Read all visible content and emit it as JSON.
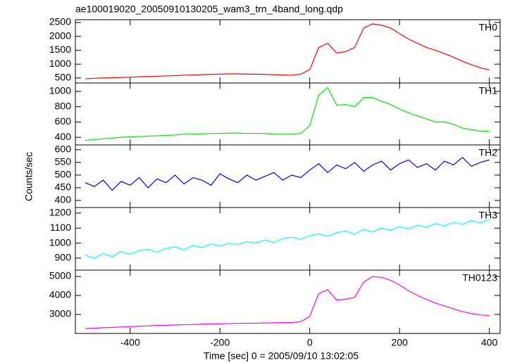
{
  "title": "ae100019020_20050910130205_wam3_trn_4band_long.qdp",
  "y_label": "Counts/sec",
  "x_label": "Time [sec] 0 = 2005/09/10 13:02:05",
  "chart_data": [
    {
      "type": "line",
      "xlim": [
        -522,
        424
      ],
      "xticks": [
        -400,
        -200,
        0,
        200,
        400
      ],
      "ylim": [
        320,
        2600
      ],
      "yticks": [
        500,
        1000,
        1500,
        2000,
        2500
      ],
      "x": [
        -500,
        -480,
        -460,
        -440,
        -420,
        -400,
        -380,
        -360,
        -340,
        -320,
        -300,
        -280,
        -260,
        -240,
        -220,
        -200,
        -180,
        -160,
        -140,
        -120,
        -100,
        -80,
        -60,
        -40,
        -20,
        0,
        20,
        40,
        60,
        80,
        100,
        120,
        140,
        160,
        180,
        200,
        220,
        240,
        260,
        280,
        300,
        320,
        340,
        360,
        380,
        400
      ],
      "series": [
        {
          "name": "TH0",
          "color": "#ff0000",
          "values": [
            470,
            490,
            500,
            510,
            520,
            530,
            545,
            555,
            565,
            575,
            585,
            600,
            610,
            620,
            630,
            640,
            650,
            650,
            640,
            640,
            630,
            620,
            610,
            600,
            640,
            800,
            1600,
            1750,
            1400,
            1450,
            1600,
            2300,
            2450,
            2400,
            2300,
            2100,
            1900,
            1750,
            1600,
            1500,
            1380,
            1250,
            1100,
            980,
            870,
            790
          ]
        }
      ]
    },
    {
      "type": "line",
      "xlim": [
        -522,
        424
      ],
      "xticks": [
        -400,
        -200,
        0,
        200,
        400
      ],
      "ylim": [
        300,
        1110
      ],
      "yticks": [
        400,
        600,
        800,
        1000
      ],
      "x": [
        -500,
        -480,
        -460,
        -440,
        -420,
        -400,
        -380,
        -360,
        -340,
        -320,
        -300,
        -280,
        -260,
        -240,
        -220,
        -200,
        -180,
        -160,
        -140,
        -120,
        -100,
        -80,
        -60,
        -40,
        -20,
        0,
        20,
        40,
        60,
        80,
        100,
        120,
        140,
        160,
        180,
        200,
        220,
        240,
        260,
        280,
        300,
        320,
        340,
        360,
        380,
        400
      ],
      "series": [
        {
          "name": "TH1",
          "color": "#00e600",
          "values": [
            360,
            370,
            380,
            390,
            400,
            405,
            410,
            415,
            420,
            425,
            430,
            440,
            440,
            445,
            450,
            450,
            455,
            455,
            450,
            450,
            450,
            440,
            440,
            440,
            450,
            550,
            950,
            1050,
            820,
            830,
            800,
            920,
            920,
            870,
            830,
            770,
            720,
            680,
            640,
            600,
            600,
            570,
            520,
            500,
            480,
            480
          ]
        }
      ]
    },
    {
      "type": "line",
      "xlim": [
        -522,
        424
      ],
      "xticks": [
        -400,
        -200,
        0,
        200,
        400
      ],
      "ylim": [
        372,
        619
      ],
      "yticks": [
        400,
        450,
        500,
        550,
        600
      ],
      "x": [
        -500,
        -480,
        -460,
        -440,
        -420,
        -400,
        -380,
        -360,
        -340,
        -320,
        -300,
        -280,
        -260,
        -240,
        -220,
        -200,
        -180,
        -160,
        -140,
        -120,
        -100,
        -80,
        -60,
        -40,
        -20,
        0,
        20,
        40,
        60,
        80,
        100,
        120,
        140,
        160,
        180,
        200,
        220,
        240,
        260,
        280,
        300,
        320,
        340,
        360,
        380,
        400
      ],
      "series": [
        {
          "name": "TH2",
          "color": "#0000e6",
          "values": [
            470,
            455,
            480,
            440,
            475,
            460,
            490,
            450,
            485,
            470,
            500,
            465,
            490,
            480,
            460,
            505,
            485,
            470,
            500,
            480,
            495,
            510,
            480,
            500,
            490,
            520,
            545,
            510,
            540,
            525,
            550,
            515,
            540,
            555,
            520,
            545,
            560,
            530,
            545,
            520,
            555,
            540,
            570,
            535,
            550,
            560
          ]
        }
      ]
    },
    {
      "type": "line",
      "xlim": [
        -522,
        424
      ],
      "xticks": [
        -400,
        -200,
        0,
        200,
        400
      ],
      "ylim": [
        820,
        1237
      ],
      "yticks": [
        900,
        1000,
        1100,
        1200
      ],
      "x": [
        -500,
        -480,
        -460,
        -440,
        -420,
        -400,
        -380,
        -360,
        -340,
        -320,
        -300,
        -280,
        -260,
        -240,
        -220,
        -200,
        -180,
        -160,
        -140,
        -120,
        -100,
        -80,
        -60,
        -40,
        -20,
        0,
        20,
        40,
        60,
        80,
        100,
        120,
        140,
        160,
        180,
        200,
        220,
        240,
        260,
        280,
        300,
        320,
        340,
        360,
        380,
        400
      ],
      "series": [
        {
          "name": "TH3",
          "color": "#00ffff",
          "values": [
            920,
            900,
            930,
            910,
            945,
            925,
            950,
            960,
            940,
            965,
            975,
            955,
            985,
            970,
            995,
            980,
            1000,
            990,
            1010,
            1000,
            1020,
            1005,
            1030,
            1040,
            1025,
            1050,
            1060,
            1045,
            1070,
            1080,
            1060,
            1090,
            1075,
            1100,
            1085,
            1110,
            1095,
            1120,
            1105,
            1130,
            1115,
            1140,
            1125,
            1150,
            1135,
            1160
          ]
        }
      ]
    },
    {
      "type": "line",
      "xlim": [
        -522,
        424
      ],
      "xticks": [
        -400,
        -200,
        0,
        200,
        400
      ],
      "ylim": [
        2000,
        5333
      ],
      "yticks": [
        3000,
        4000,
        5000
      ],
      "x": [
        -500,
        -480,
        -460,
        -440,
        -420,
        -400,
        -380,
        -360,
        -340,
        -320,
        -300,
        -280,
        -260,
        -240,
        -220,
        -200,
        -180,
        -160,
        -140,
        -120,
        -100,
        -80,
        -60,
        -40,
        -20,
        0,
        20,
        40,
        60,
        80,
        100,
        120,
        140,
        160,
        180,
        200,
        220,
        240,
        260,
        280,
        300,
        320,
        340,
        360,
        380,
        400
      ],
      "series": [
        {
          "name": "TH0123",
          "color": "#ff00ff",
          "values": [
            2250,
            2280,
            2300,
            2320,
            2340,
            2360,
            2380,
            2400,
            2420,
            2430,
            2450,
            2460,
            2470,
            2490,
            2500,
            2510,
            2520,
            2530,
            2540,
            2540,
            2550,
            2560,
            2570,
            2570,
            2620,
            2900,
            4100,
            4300,
            3750,
            3800,
            3900,
            4700,
            5000,
            4950,
            4800,
            4550,
            4250,
            4000,
            3800,
            3600,
            3450,
            3300,
            3150,
            3050,
            2970,
            2950
          ]
        }
      ]
    }
  ]
}
